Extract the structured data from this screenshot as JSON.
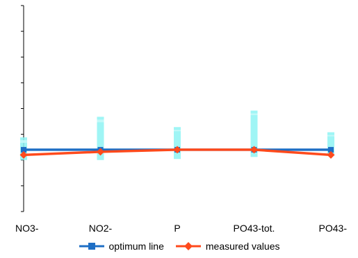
{
  "chart_data": {
    "type": "line",
    "categories": [
      "NO3-",
      "NO2-",
      "P",
      "PO43-tot.",
      "PO43-"
    ],
    "ylim": [
      -0.6,
      1.4
    ],
    "grid": false,
    "legend_position": "bottom",
    "series": [
      {
        "name": "optimum line",
        "color": "#1f6fc5",
        "marker": "square",
        "values": [
          0,
          0,
          0,
          0,
          0
        ]
      },
      {
        "name": "measured values",
        "color": "#ff4a1c",
        "marker": "diamond",
        "values": [
          -0.05,
          -0.02,
          0,
          0,
          -0.05
        ]
      }
    ],
    "range_bars": {
      "color": "#8ef3f3",
      "low": [
        -0.1,
        -0.1,
        -0.09,
        -0.07,
        -0.04
      ],
      "high": [
        0.12,
        0.32,
        0.22,
        0.38,
        0.17
      ],
      "band": [
        0.08,
        0.28,
        0.2,
        0.35,
        0.15
      ]
    }
  }
}
